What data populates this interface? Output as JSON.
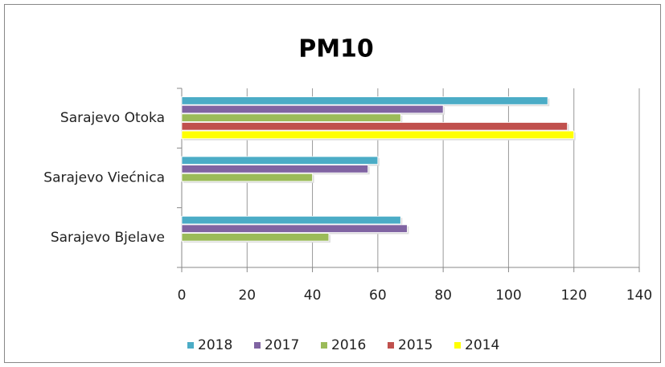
{
  "chart_data": {
    "type": "hbar",
    "title": "PM10",
    "categories": [
      "Sarajevo Otoka",
      "Sarajevo Viećnica",
      "Sarajevo Bjelave"
    ],
    "series": [
      {
        "name": "2018",
        "color": "#4bacc6",
        "values": [
          112,
          60,
          67
        ]
      },
      {
        "name": "2017",
        "color": "#8064a2",
        "values": [
          80,
          57,
          69
        ]
      },
      {
        "name": "2016",
        "color": "#9bbb59",
        "values": [
          67,
          40,
          45
        ]
      },
      {
        "name": "2015",
        "color": "#c0504d",
        "values": [
          118,
          null,
          null
        ]
      },
      {
        "name": "2014",
        "color": "#ffff00",
        "values": [
          120,
          null,
          null
        ]
      }
    ],
    "xlim": [
      0,
      140
    ],
    "xticks": [
      0,
      20,
      40,
      60,
      80,
      100,
      120,
      140
    ],
    "grid": true,
    "legend": "bottom"
  }
}
